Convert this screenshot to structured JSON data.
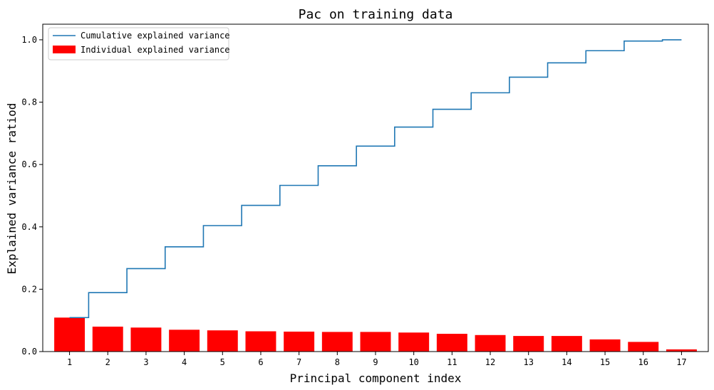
{
  "chart_data": {
    "type": "bar",
    "title": "Pac on training data",
    "xlabel": "Principal component index",
    "ylabel": "Explained variance ratiod",
    "categories": [
      "1",
      "2",
      "3",
      "4",
      "5",
      "6",
      "7",
      "8",
      "9",
      "10",
      "11",
      "12",
      "13",
      "14",
      "15",
      "16",
      "17"
    ],
    "ylim": [
      0,
      1.05
    ],
    "yticks": [
      0.0,
      0.2,
      0.4,
      0.6,
      0.8,
      1.0
    ],
    "ytick_labels": [
      "0.0",
      "0.2",
      "0.4",
      "0.6",
      "0.8",
      "1.0"
    ],
    "grid": false,
    "legend_position": "top-left",
    "series": [
      {
        "name": "Individual explained variance",
        "type": "bar",
        "color": "#ff0000",
        "values": [
          0.109,
          0.08,
          0.077,
          0.07,
          0.068,
          0.065,
          0.064,
          0.063,
          0.063,
          0.061,
          0.057,
          0.053,
          0.05,
          0.05,
          0.039,
          0.031,
          0.007
        ]
      },
      {
        "name": "Cumulative explained variance",
        "type": "step",
        "color": "#1f77b4",
        "values": [
          0.109,
          0.189,
          0.266,
          0.336,
          0.404,
          0.469,
          0.533,
          0.596,
          0.659,
          0.72,
          0.777,
          0.83,
          0.88,
          0.926,
          0.965,
          0.996,
          1.0
        ]
      }
    ]
  }
}
